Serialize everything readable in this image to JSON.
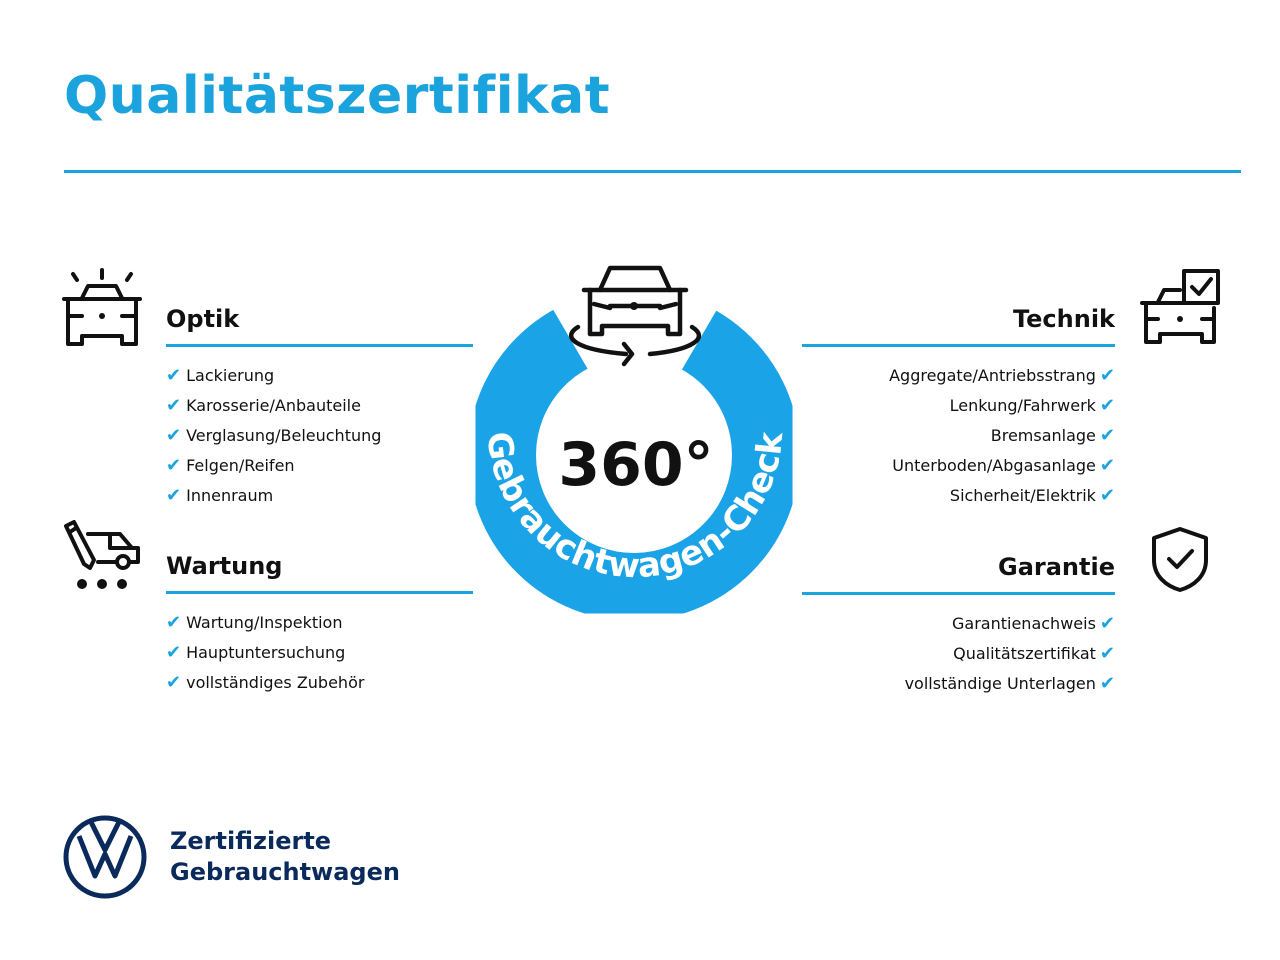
{
  "title": "Qualitätszertifikat",
  "accent_color": "#1aa3dd",
  "brand_color": "#0a2a5c",
  "center": {
    "value": "360°",
    "ring_text": "Gebrauchtwagen-Check",
    "icon": "car-rotate-icon"
  },
  "sections": {
    "optik": {
      "heading": "Optik",
      "icon": "car-lights-icon",
      "items": [
        "Lackierung",
        "Karosserie/Anbauteile",
        "Verglasung/Beleuchtung",
        "Felgen/Reifen",
        "Innenraum"
      ]
    },
    "wartung": {
      "heading": "Wartung",
      "icon": "service-checklist-icon",
      "items": [
        "Wartung/Inspektion",
        "Hauptuntersuchung",
        "vollständiges Zubehör"
      ]
    },
    "technik": {
      "heading": "Technik",
      "icon": "car-checkbox-icon",
      "items": [
        "Aggregate/Antriebsstrang",
        "Lenkung/Fahrwerk",
        "Bremsanlage",
        "Unterboden/Abgasanlage",
        "Sicherheit/Elektrik"
      ]
    },
    "garantie": {
      "heading": "Garantie",
      "icon": "shield-check-icon",
      "items": [
        "Garantienachweis",
        "Qualitätszertifikat",
        "vollständige Unterlagen"
      ]
    }
  },
  "check_glyph": "✔",
  "footer": {
    "line1": "Zertifizierte",
    "line2": "Gebrauchtwagen",
    "logo": "vw-logo"
  }
}
